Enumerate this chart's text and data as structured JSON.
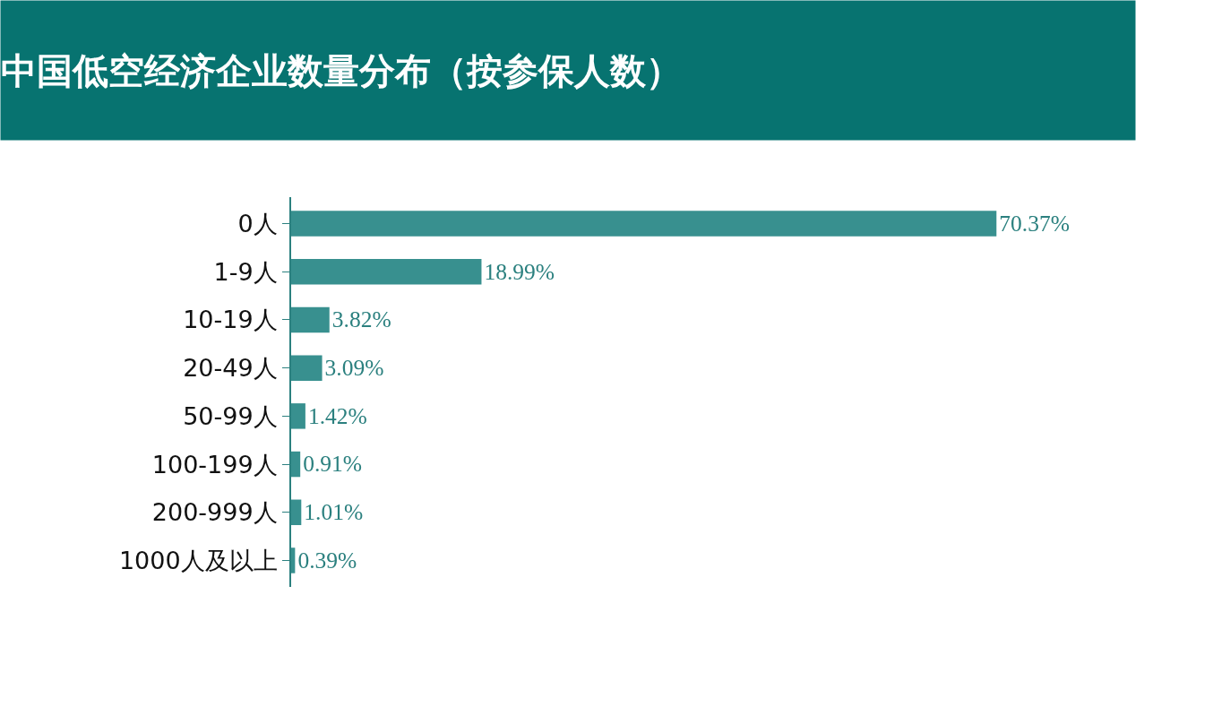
{
  "chart_data": {
    "type": "bar",
    "orientation": "horizontal",
    "title": "中国低空经济企业数量分布（按参保人数）",
    "categories": [
      "0人",
      "1-9人",
      "10-19人",
      "20-49人",
      "50-99人",
      "100-199人",
      "200-999人",
      "1000人及以上"
    ],
    "values": [
      70.37,
      18.99,
      3.82,
      3.09,
      1.42,
      0.91,
      1.01,
      0.39
    ],
    "value_labels": [
      "70.37%",
      "18.99%",
      "3.82%",
      "3.09%",
      "1.42%",
      "0.91%",
      "1.01%",
      "0.39%"
    ],
    "color": "#38908f",
    "legend": false
  }
}
